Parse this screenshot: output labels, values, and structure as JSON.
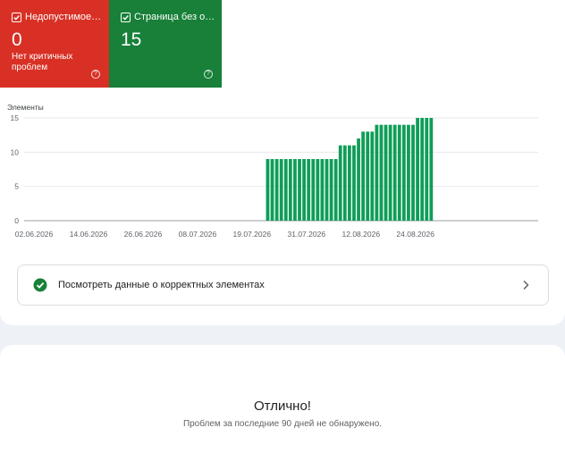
{
  "tiles": {
    "invalid": {
      "label": "Недопустимое з...",
      "value": "0",
      "sub": "Нет критичных проблем",
      "color": "#d93025"
    },
    "valid": {
      "label": "Страница без ош...",
      "value": "15",
      "color": "#188038"
    }
  },
  "chart_data": {
    "type": "bar",
    "ylabel": "Элементы",
    "ylim": [
      0,
      15
    ],
    "yticks": [
      0,
      5,
      10,
      15
    ],
    "xtick_labels": [
      "02.06.2026",
      "14.06.2026",
      "26.06.2026",
      "08.07.2026",
      "19.07.2026",
      "31.07.2026",
      "12.08.2026",
      "24.08.2026"
    ],
    "first_date": "02.06.2026",
    "days_shown": 90,
    "bar_color": "#0f9d58",
    "series": [
      {
        "values": [
          0,
          0,
          0,
          0,
          0,
          0,
          0,
          0,
          0,
          0,
          0,
          0,
          0,
          0,
          0,
          0,
          0,
          0,
          0,
          0,
          0,
          0,
          0,
          0,
          0,
          0,
          0,
          0,
          0,
          0,
          0,
          0,
          0,
          0,
          0,
          0,
          0,
          0,
          0,
          0,
          0,
          0,
          0,
          0,
          0,
          0,
          0,
          0,
          0,
          0,
          0,
          0,
          0,
          0,
          0,
          0,
          0,
          9,
          9,
          9,
          9,
          9,
          9,
          9,
          9,
          9,
          9,
          9,
          9,
          9,
          9,
          9,
          9,
          11,
          11,
          11,
          11,
          12,
          13,
          13,
          13,
          14,
          14,
          14,
          14,
          14,
          14,
          14,
          14,
          14,
          15,
          15,
          15,
          15
        ]
      }
    ]
  },
  "details_link": {
    "label": "Посмотреть данные о корректных элементах"
  },
  "summary": {
    "title": "Отлично!",
    "subtitle": "Проблем за последние 90 дней не обнаружено."
  }
}
